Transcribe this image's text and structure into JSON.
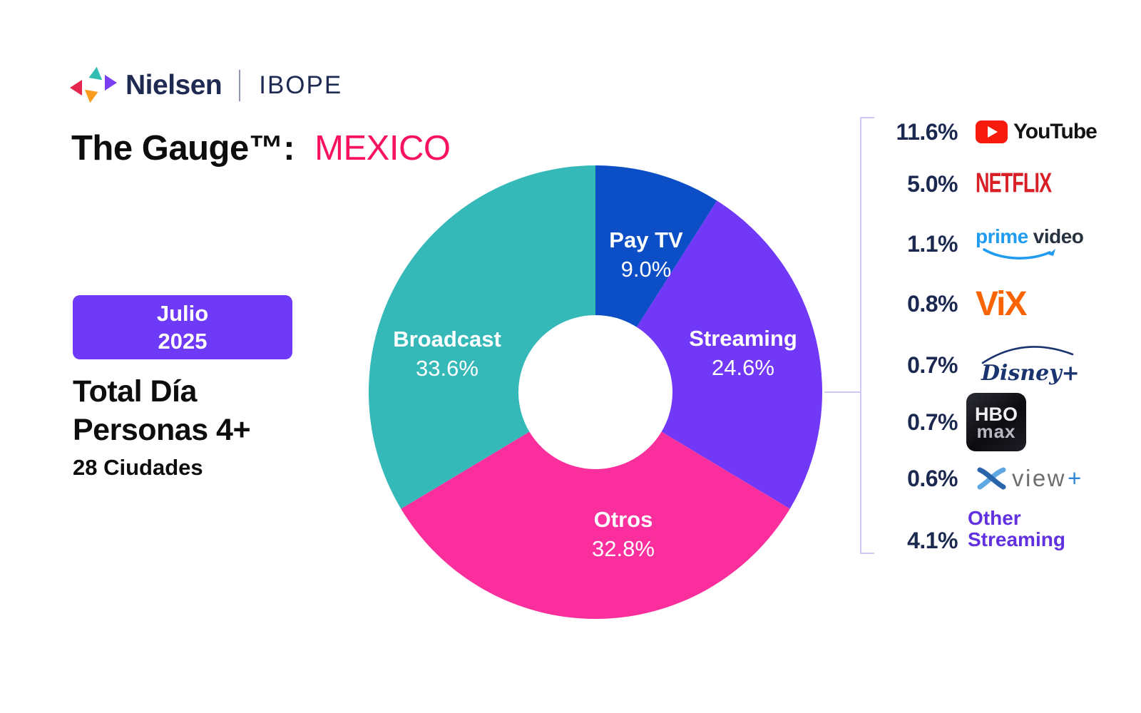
{
  "header": {
    "brand": "Nielsen",
    "partner": "IBOPE",
    "title_prefix": "The Gauge™:",
    "title_region": "MEXICO",
    "title_region_color": "#f8125f"
  },
  "period_badge": {
    "line1": "Julio",
    "line2": "2025",
    "color": "#6f3af7"
  },
  "audience": {
    "line1": "Total Día",
    "line2": "Personas 4+",
    "line3": "28 Ciudades"
  },
  "chart_data": {
    "type": "pie",
    "subtype": "donut",
    "title": "The Gauge™: MEXICO",
    "period": "Julio 2025",
    "universe": "Total Día Personas 4+ 28 Ciudades",
    "start_angle_deg": 0,
    "direction": "clockwise",
    "slices": [
      {
        "label": "Pay TV",
        "value": 9.0,
        "pct": "9.0%",
        "color": "#0b4ec5"
      },
      {
        "label": "Streaming",
        "value": 24.6,
        "pct": "24.6%",
        "color": "#7138f8"
      },
      {
        "label": "Otros",
        "value": 32.8,
        "pct": "32.8%",
        "color": "#fa2f9d"
      },
      {
        "label": "Broadcast",
        "value": 33.6,
        "pct": "33.6%",
        "color": "#35b8b8"
      }
    ],
    "breakdown": {
      "of": "Streaming",
      "items": [
        {
          "pct": "11.6%",
          "name": "YouTube",
          "logo_text": "YouTube"
        },
        {
          "pct": "5.0%",
          "name": "Netflix",
          "logo_text": "NETFLIX"
        },
        {
          "pct": "1.1%",
          "name": "Prime Video",
          "logo_text1": "prime",
          "logo_text2": "video"
        },
        {
          "pct": "0.8%",
          "name": "ViX",
          "logo_text": "ViX"
        },
        {
          "pct": "0.7%",
          "name": "Disney+",
          "logo_text": "Disney+"
        },
        {
          "pct": "0.7%",
          "name": "HBO Max",
          "logo_text1": "HBO",
          "logo_text2": "max"
        },
        {
          "pct": "0.6%",
          "name": "view+",
          "logo_text1": "view",
          "logo_text2": "+"
        },
        {
          "pct": "4.1%",
          "name": "Other Streaming",
          "logo_text1": "Other",
          "logo_text2": "Streaming"
        }
      ]
    }
  }
}
